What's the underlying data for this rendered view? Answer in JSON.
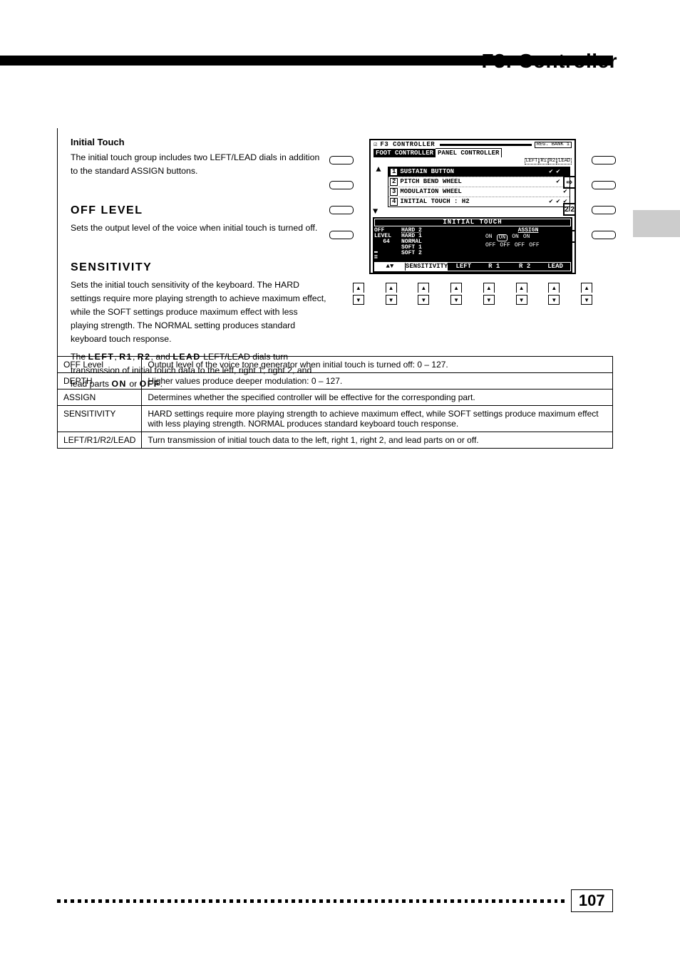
{
  "header": {
    "title": "F3: Controller",
    "page_number": "107"
  },
  "section": {
    "title": "Initial Touch",
    "intro": "The initial touch group includes two LEFT/LEAD dials in addition to the standard ASSIGN buttons.",
    "off_head": "OFF LEVEL",
    "off_body": "Sets the output level of the voice when initial touch is turned off.",
    "sens_head": "SENSITIVITY",
    "sens_body": "Sets the initial touch sensitivity of the keyboard. The HARD settings require more playing strength to achieve maximum effect, while the SOFT settings produce maximum effect with less playing strength. The NORMAL setting produces standard keyboard touch response.",
    "sens_body2_prefix": "The",
    "sens_kbd1": "LEFT",
    "sens_comma1": ",",
    "sens_kbd2": "R1",
    "sens_comma2": ",",
    "sens_kbd3": "R2",
    "sens_and": ", and",
    "sens_kbd4": "LEAD",
    "sens_body2_suffix": "LEFT/LEAD dials turn transmission of initial touch data to the left, right 1, right 2, and lead parts",
    "sens_on": "ON",
    "sens_or": "or",
    "sens_off": "OFF",
    "sens_body2_end": "."
  },
  "lcd": {
    "flag": "☑",
    "title": "F3 CONTROLLER",
    "bank": "REG. BANK 1",
    "tab_active": "FOOT CONTROLLER",
    "tab_inactive": "PANEL CONTROLLER",
    "cols": [
      "LEFT",
      "R1",
      "R2",
      "LEAD"
    ],
    "rows": [
      {
        "n": "1",
        "name": "SUSTAIN BUTTON",
        "chk": [
          "",
          "✔",
          "✔",
          ""
        ]
      },
      {
        "n": "2",
        "name": "PITCH BEND WHEEL",
        "chk": [
          "",
          "",
          "✔",
          ""
        ]
      },
      {
        "n": "3",
        "name": "MODULATION WHEEL",
        "chk": [
          "",
          "",
          "",
          "✔"
        ]
      },
      {
        "n": "4",
        "name": "INITIAL TOUCH : H2",
        "chk": [
          "",
          "✔",
          "✔",
          "✔"
        ]
      }
    ],
    "side_icons": [
      "⇨",
      "2/2",
      "↩"
    ],
    "dark": {
      "title": "INITIAL TOUCH",
      "off_label": "OFF LEVEL",
      "off_value": "64",
      "assign": "ASSIGN",
      "opts": [
        "HARD 2",
        "HARD 1",
        "NORMAL",
        "SOFT 1",
        "SOFT 2"
      ],
      "selected": "HARD 2",
      "assign_rows": [
        [
          "ON",
          "ON",
          "ON",
          "ON"
        ],
        [
          "OFF",
          "OFF",
          "OFF",
          "OFF"
        ]
      ],
      "highlight": [
        [
          0,
          0
        ],
        [
          1,
          0
        ],
        [
          0,
          0
        ],
        [
          0,
          0
        ]
      ],
      "bottom": [
        "▲▼",
        "SENSITIVITY",
        "LEFT",
        "R 1",
        "R 2",
        "LEAD"
      ]
    }
  },
  "table": {
    "rows": [
      {
        "c": "OFF Level",
        "t": "Output level of the voice tone generator when initial touch is turned off: 0 – 127."
      },
      {
        "c": "DEPTH",
        "t": "Higher values produce deeper modulation: 0 – 127."
      },
      {
        "c": "ASSIGN",
        "t": "Determines whether the specified controller will be effective for the corresponding part."
      },
      {
        "c": "SENSITIVITY",
        "t": "HARD settings require more playing strength to achieve maximum effect, while SOFT settings produce maximum effect with less playing strength. NORMAL produces standard keyboard touch response."
      },
      {
        "c": "LEFT/R1/R2/LEAD",
        "t": "Turn transmission of initial touch data to the left, right 1, right 2, and lead parts on or off."
      }
    ]
  }
}
